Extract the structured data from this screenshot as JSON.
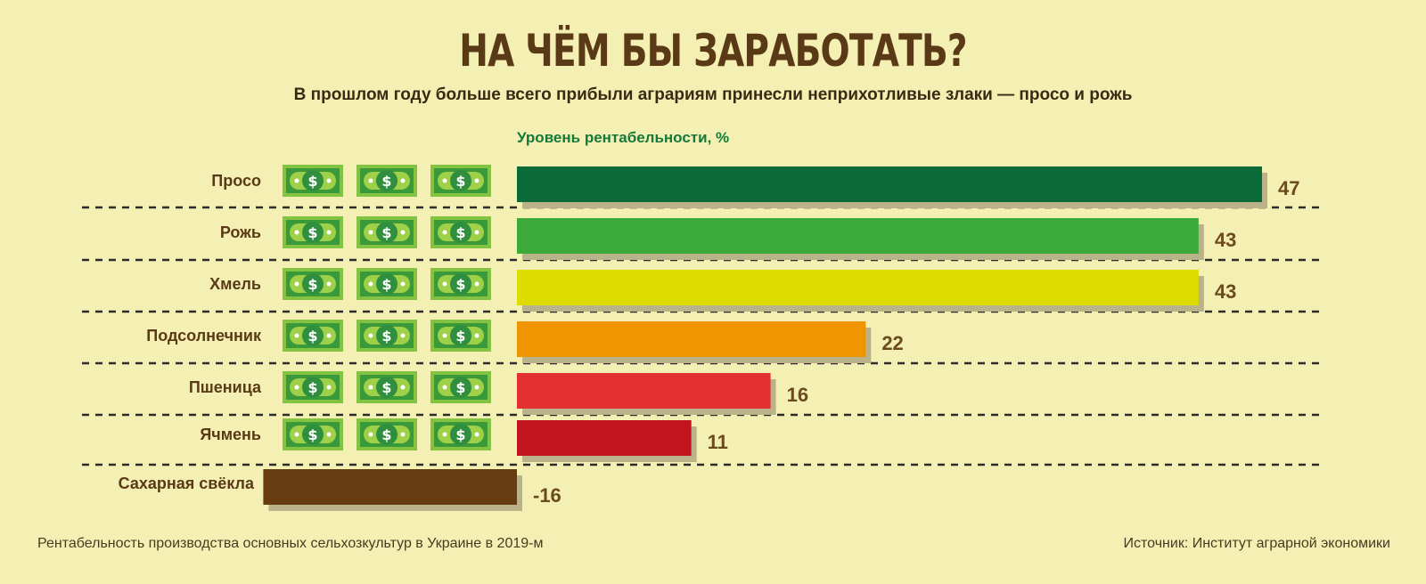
{
  "title": "НА ЧЁМ БЫ ЗАРАБОТАТЬ?",
  "subtitle": "В прошлом году больше всего прибыли аграриям принесли неприхотливые злаки — просо и рожь",
  "footnote": "Рентабельность производства основных сельхозкультур в Украине в 2019-м",
  "source": "Источник: Институт аграрной экономики",
  "chart_data": {
    "type": "bar",
    "orientation": "horizontal",
    "ylabel": "Уровень рентабельности, %",
    "categories": [
      "Просо",
      "Рожь",
      "Хмель",
      "Подсолнечник",
      "Пшеница",
      "Ячмень",
      "Сахарная свёкла"
    ],
    "values": [
      47,
      43,
      43,
      22,
      16,
      11,
      -16
    ],
    "colors": [
      "#0b6b38",
      "#3dab3a",
      "#dcdc00",
      "#f09400",
      "#e43030",
      "#c2141f",
      "#683c11"
    ],
    "icons_per_row": [
      3,
      3,
      3,
      3,
      3,
      3,
      0
    ],
    "icon": "dollar-bill-icon",
    "grid": false
  }
}
